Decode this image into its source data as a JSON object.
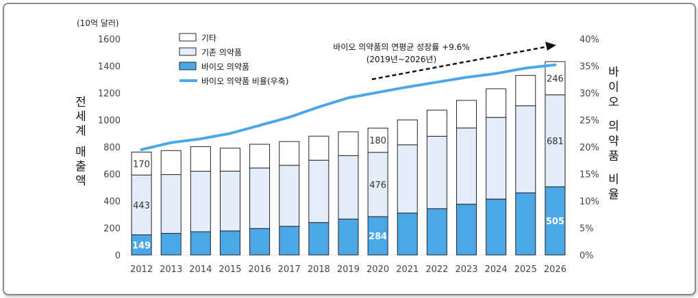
{
  "chart_data": {
    "type": "bar",
    "stacked": true,
    "unit_label": "(10억 달러)",
    "left_axis_label": "전세계 매출액",
    "right_axis_label": "바이오 의약품 비율",
    "categories": [
      "2012",
      "2013",
      "2014",
      "2015",
      "2016",
      "2017",
      "2018",
      "2019",
      "2020",
      "2021",
      "2022",
      "2023",
      "2024",
      "2025",
      "2026"
    ],
    "series": [
      {
        "name": "바이오 의약품",
        "color": "#4aa8e8",
        "values": [
          149,
          160,
          172,
          178,
          196,
          212,
          240,
          266,
          284,
          310,
          343,
          376,
          414,
          460,
          505
        ]
      },
      {
        "name": "기존 의약품",
        "color": "#e3ecf9",
        "values": [
          443,
          435,
          448,
          443,
          448,
          452,
          462,
          470,
          476,
          506,
          536,
          565,
          605,
          645,
          681
        ]
      },
      {
        "name": "기타",
        "color": "#ffffff",
        "values": [
          170,
          178,
          182,
          170,
          176,
          176,
          178,
          176,
          180,
          184,
          194,
          204,
          212,
          225,
          246
        ]
      }
    ],
    "ratio_series": {
      "name": "바이오 의약품 비율(우축)",
      "color": "#4aa8e8",
      "values": [
        19.5,
        20.8,
        21.5,
        22.5,
        24.0,
        25.5,
        27.4,
        29.1,
        30.1,
        31.1,
        32.0,
        32.9,
        33.6,
        34.6,
        35.2
      ]
    },
    "y_left": {
      "min": 0,
      "max": 1600,
      "step": 200,
      "ticks": [
        "0",
        "200",
        "400",
        "600",
        "800",
        "1000",
        "1200",
        "1400",
        "1600"
      ]
    },
    "y_right": {
      "min": 0,
      "max": 40,
      "step": 5,
      "ticks": [
        "0%",
        "5%",
        "10%",
        "15%",
        "20%",
        "25%",
        "30%",
        "35%",
        "40%"
      ]
    },
    "data_labels": [
      {
        "year": "2012",
        "series": "바이오 의약품",
        "text": "149"
      },
      {
        "year": "2012",
        "series": "기존 의약품",
        "text": "443"
      },
      {
        "year": "2012",
        "series": "기타",
        "text": "170"
      },
      {
        "year": "2020",
        "series": "바이오 의약품",
        "text": "284"
      },
      {
        "year": "2020",
        "series": "기존 의약품",
        "text": "476"
      },
      {
        "year": "2020",
        "series": "기타",
        "text": "180"
      },
      {
        "year": "2026",
        "series": "바이오 의약품",
        "text": "505"
      },
      {
        "year": "2026",
        "series": "기존 의약품",
        "text": "681"
      },
      {
        "year": "2026",
        "series": "기타",
        "text": "246"
      }
    ],
    "annotation": {
      "line1": "바이오 의약품의 연평균 성장률 +9.6%",
      "line2": "(2019년~2026년)"
    },
    "grid": false,
    "legend_position": "top-left"
  }
}
